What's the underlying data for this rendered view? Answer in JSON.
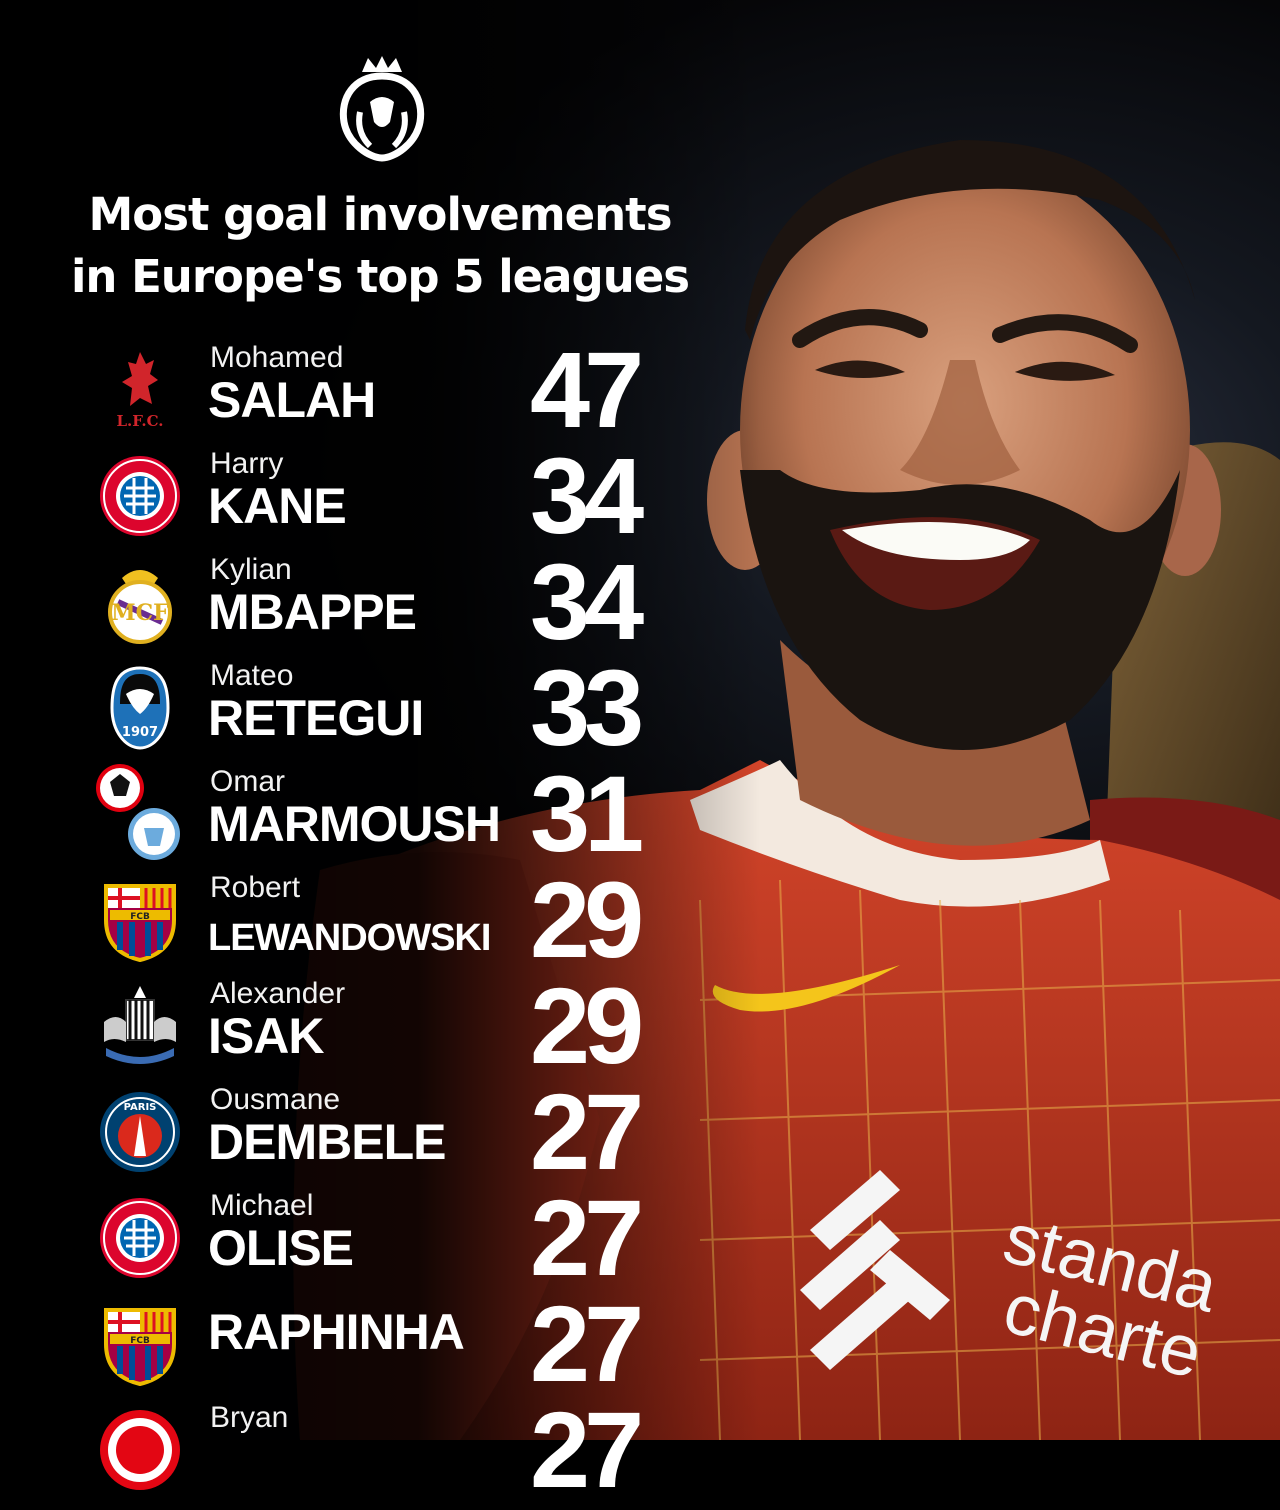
{
  "header": {
    "title_line1": "Most goal involvements",
    "title_line2": "in Europe's top 5 leagues",
    "logo_icon": "premier-league-lion-icon"
  },
  "colors": {
    "background": "#050507",
    "shirt_red": "#c23a22",
    "text": "#ffffff"
  },
  "players": [
    {
      "first": "Mohamed",
      "last": "SALAH",
      "value": "47",
      "club_icon": "liverpool-crest-icon",
      "crest_text": "L.F.C."
    },
    {
      "first": "Harry",
      "last": "KANE",
      "value": "34",
      "club_icon": "bayern-munich-crest-icon"
    },
    {
      "first": "Kylian",
      "last": "MBAPPE",
      "value": "34",
      "club_icon": "real-madrid-crest-icon"
    },
    {
      "first": "Mateo",
      "last": "RETEGUI",
      "value": "33",
      "club_icon": "atalanta-crest-icon",
      "crest_text": "1907"
    },
    {
      "first": "Omar",
      "last": "MARMOUSH",
      "value": "31",
      "club_icon": "frankfurt-and-man-city-crest-icon"
    },
    {
      "first": "Robert",
      "last": "LEWANDOWSKI",
      "value": "29",
      "club_icon": "barcelona-crest-icon",
      "crest_text": "FCB"
    },
    {
      "first": "Alexander",
      "last": "ISAK",
      "value": "29",
      "club_icon": "newcastle-crest-icon"
    },
    {
      "first": "Ousmane",
      "last": "DEMBELE",
      "value": "27",
      "club_icon": "psg-crest-icon",
      "crest_text": "PARIS"
    },
    {
      "first": "Michael",
      "last": "OLISE",
      "value": "27",
      "club_icon": "bayern-munich-crest-icon"
    },
    {
      "first": "",
      "last": "RAPHINHA",
      "value": "27",
      "club_icon": "barcelona-crest-icon",
      "crest_text": "FCB"
    },
    {
      "first": "Bryan",
      "last": "",
      "value": "27",
      "club_icon": "brentford-crest-icon"
    }
  ]
}
